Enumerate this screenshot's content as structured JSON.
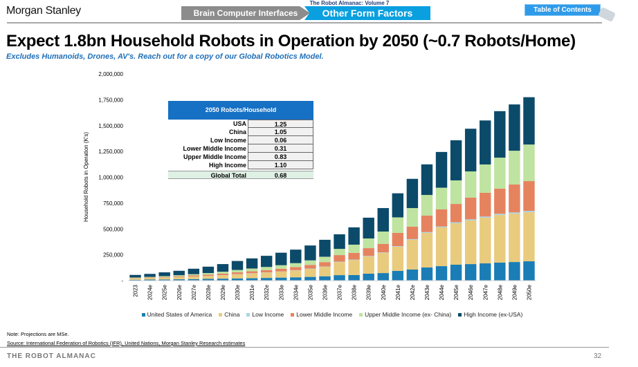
{
  "header": {
    "logo": "Morgan Stanley",
    "volume": "The Robot Almanac: Volume 7",
    "tabs": [
      {
        "label": "Brain Computer Interfaces"
      },
      {
        "label": "Other Form Factors"
      }
    ],
    "toc_label": "Table of Contents"
  },
  "title": "Expect 1.8bn Household Robots in Operation by 2050 (~0.7 Robots/Home)",
  "subtitle": "Excludes Humanoids, Drones, AV's. Reach out for a copy of our Global Robotics Model.",
  "table": {
    "header": "2050 Robots/Household",
    "rows": [
      {
        "label": "USA",
        "value": "1.25"
      },
      {
        "label": "China",
        "value": "1.05"
      },
      {
        "label": "Low Income",
        "value": "0.06"
      },
      {
        "label": "Lower Middle Income",
        "value": "0.31"
      },
      {
        "label": "Upper Middle Income",
        "value": "0.83"
      },
      {
        "label": "High Income",
        "value": "1.10"
      }
    ],
    "total": {
      "label": "Global Total",
      "value": "0.68"
    }
  },
  "chart_data": {
    "type": "bar",
    "stacked": true,
    "ylabel": "Household Robots in Operation (K's)",
    "ylim": [
      0,
      2000000
    ],
    "yticks": [
      "-",
      "250,000",
      "500,000",
      "750,000",
      "1,000,000",
      "1,250,000",
      "1,500,000",
      "1,750,000",
      "2,000,000"
    ],
    "categories": [
      "2023",
      "2024e",
      "2025e",
      "2026e",
      "2027e",
      "2028e",
      "2029e",
      "2030e",
      "2031e",
      "2032e",
      "2033e",
      "2034e",
      "2035e",
      "2036e",
      "2037e",
      "2038e",
      "2039e",
      "2040e",
      "2041e",
      "2042e",
      "2043e",
      "2044e",
      "2045e",
      "2046e",
      "2047e",
      "2048e",
      "2049e",
      "2050e"
    ],
    "legend_position": "bottom",
    "grid": false,
    "series": [
      {
        "name": "United States of America",
        "color": "#1a7db5",
        "values": [
          8000,
          10000,
          11000,
          13000,
          15000,
          17000,
          19000,
          21000,
          23000,
          26000,
          29000,
          32000,
          36000,
          42000,
          53000,
          54000,
          67000,
          73000,
          94000,
          107000,
          127000,
          140000,
          154000,
          160000,
          167000,
          174000,
          180000,
          187000
        ]
      },
      {
        "name": "China",
        "color": "#e9cb7e",
        "values": [
          12000,
          14000,
          17000,
          20000,
          24000,
          28000,
          33000,
          40000,
          46000,
          52000,
          58000,
          66000,
          78000,
          92000,
          127000,
          146000,
          167000,
          195000,
          234000,
          288000,
          335000,
          375000,
          401000,
          422000,
          442000,
          461000,
          468000,
          475000
        ]
      },
      {
        "name": "Low Income",
        "color": "#a9d5e4",
        "values": [
          1000,
          1000,
          1000,
          1000,
          1000,
          1000,
          1000,
          2000,
          2000,
          2000,
          2000,
          3000,
          3000,
          3000,
          4000,
          4000,
          5000,
          5000,
          6000,
          7000,
          8000,
          9000,
          10000,
          11000,
          11000,
          12000,
          12000,
          13000
        ]
      },
      {
        "name": "Lower Middle Income",
        "color": "#e6835f",
        "values": [
          4000,
          5000,
          6000,
          8000,
          10000,
          12000,
          14000,
          17000,
          19000,
          22000,
          26000,
          30000,
          35000,
          42000,
          63000,
          64000,
          75000,
          82000,
          128000,
          120000,
          159000,
          165000,
          177000,
          210000,
          230000,
          243000,
          270000,
          288000
        ]
      },
      {
        "name": "Upper Middle Income (ex- China)",
        "color": "#bfe3a0",
        "values": [
          5000,
          6000,
          8000,
          10000,
          12000,
          15000,
          19000,
          23000,
          27000,
          30000,
          34000,
          38000,
          44000,
          52000,
          60000,
          80000,
          94000,
          120000,
          150000,
          180000,
          200000,
          210000,
          228000,
          254000,
          274000,
          300000,
          327000,
          354000
        ]
      },
      {
        "name": "High Income (ex-USA)",
        "color": "#0c4a6a",
        "values": [
          25000,
          29000,
          37000,
          43000,
          53000,
          62000,
          74000,
          87000,
          98000,
          108000,
          121000,
          131000,
          144000,
          164000,
          141000,
          167000,
          201000,
          227000,
          233000,
          283000,
          296000,
          346000,
          388000,
          413000,
          426000,
          450000,
          448000,
          458000
        ]
      }
    ]
  },
  "footer": {
    "note": "Note: Projections are MSe.",
    "source": "Source: International Federation of Robotics (IFR), United Nations, Morgan Stanley Research estimates",
    "title": "THE ROBOT ALMANAC",
    "page": "32"
  }
}
